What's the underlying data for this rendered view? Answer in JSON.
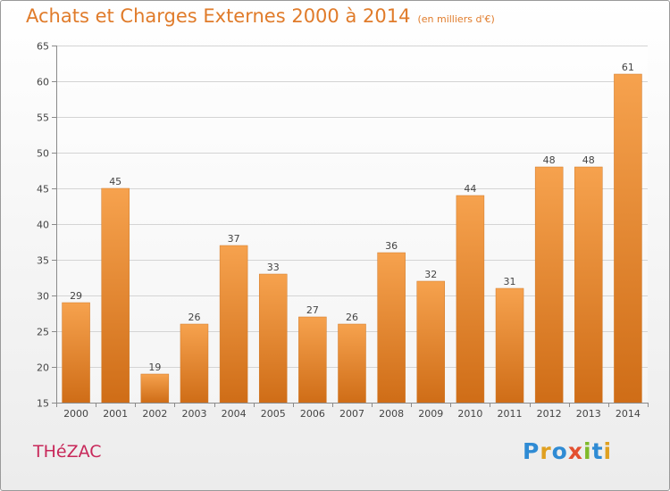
{
  "header": {
    "title": "Achats et Charges Externes 2000 à 2014",
    "unit": "(en milliers d'€)"
  },
  "footer": {
    "place": "THéZAC",
    "logo": "Proxiti"
  },
  "colors": {
    "title": "#e07b2a",
    "place": "#c8285a",
    "bar_light": "#f6a24e",
    "bar_dark": "#cf6d17"
  },
  "chart_data": {
    "type": "bar",
    "title": "Achats et Charges Externes 2000 à 2014",
    "subtitle": "(en milliers d'€)",
    "xlabel": "",
    "ylabel": "",
    "categories": [
      "2000",
      "2001",
      "2002",
      "2003",
      "2004",
      "2005",
      "2006",
      "2007",
      "2008",
      "2009",
      "2010",
      "2011",
      "2012",
      "2013",
      "2014"
    ],
    "values": [
      29,
      45,
      19,
      26,
      37,
      33,
      27,
      26,
      36,
      32,
      44,
      31,
      48,
      48,
      61
    ],
    "ylim": [
      15,
      65
    ],
    "yticks": [
      15,
      20,
      25,
      30,
      35,
      40,
      45,
      50,
      55,
      60,
      65
    ],
    "grid": true,
    "data_labels": true
  }
}
